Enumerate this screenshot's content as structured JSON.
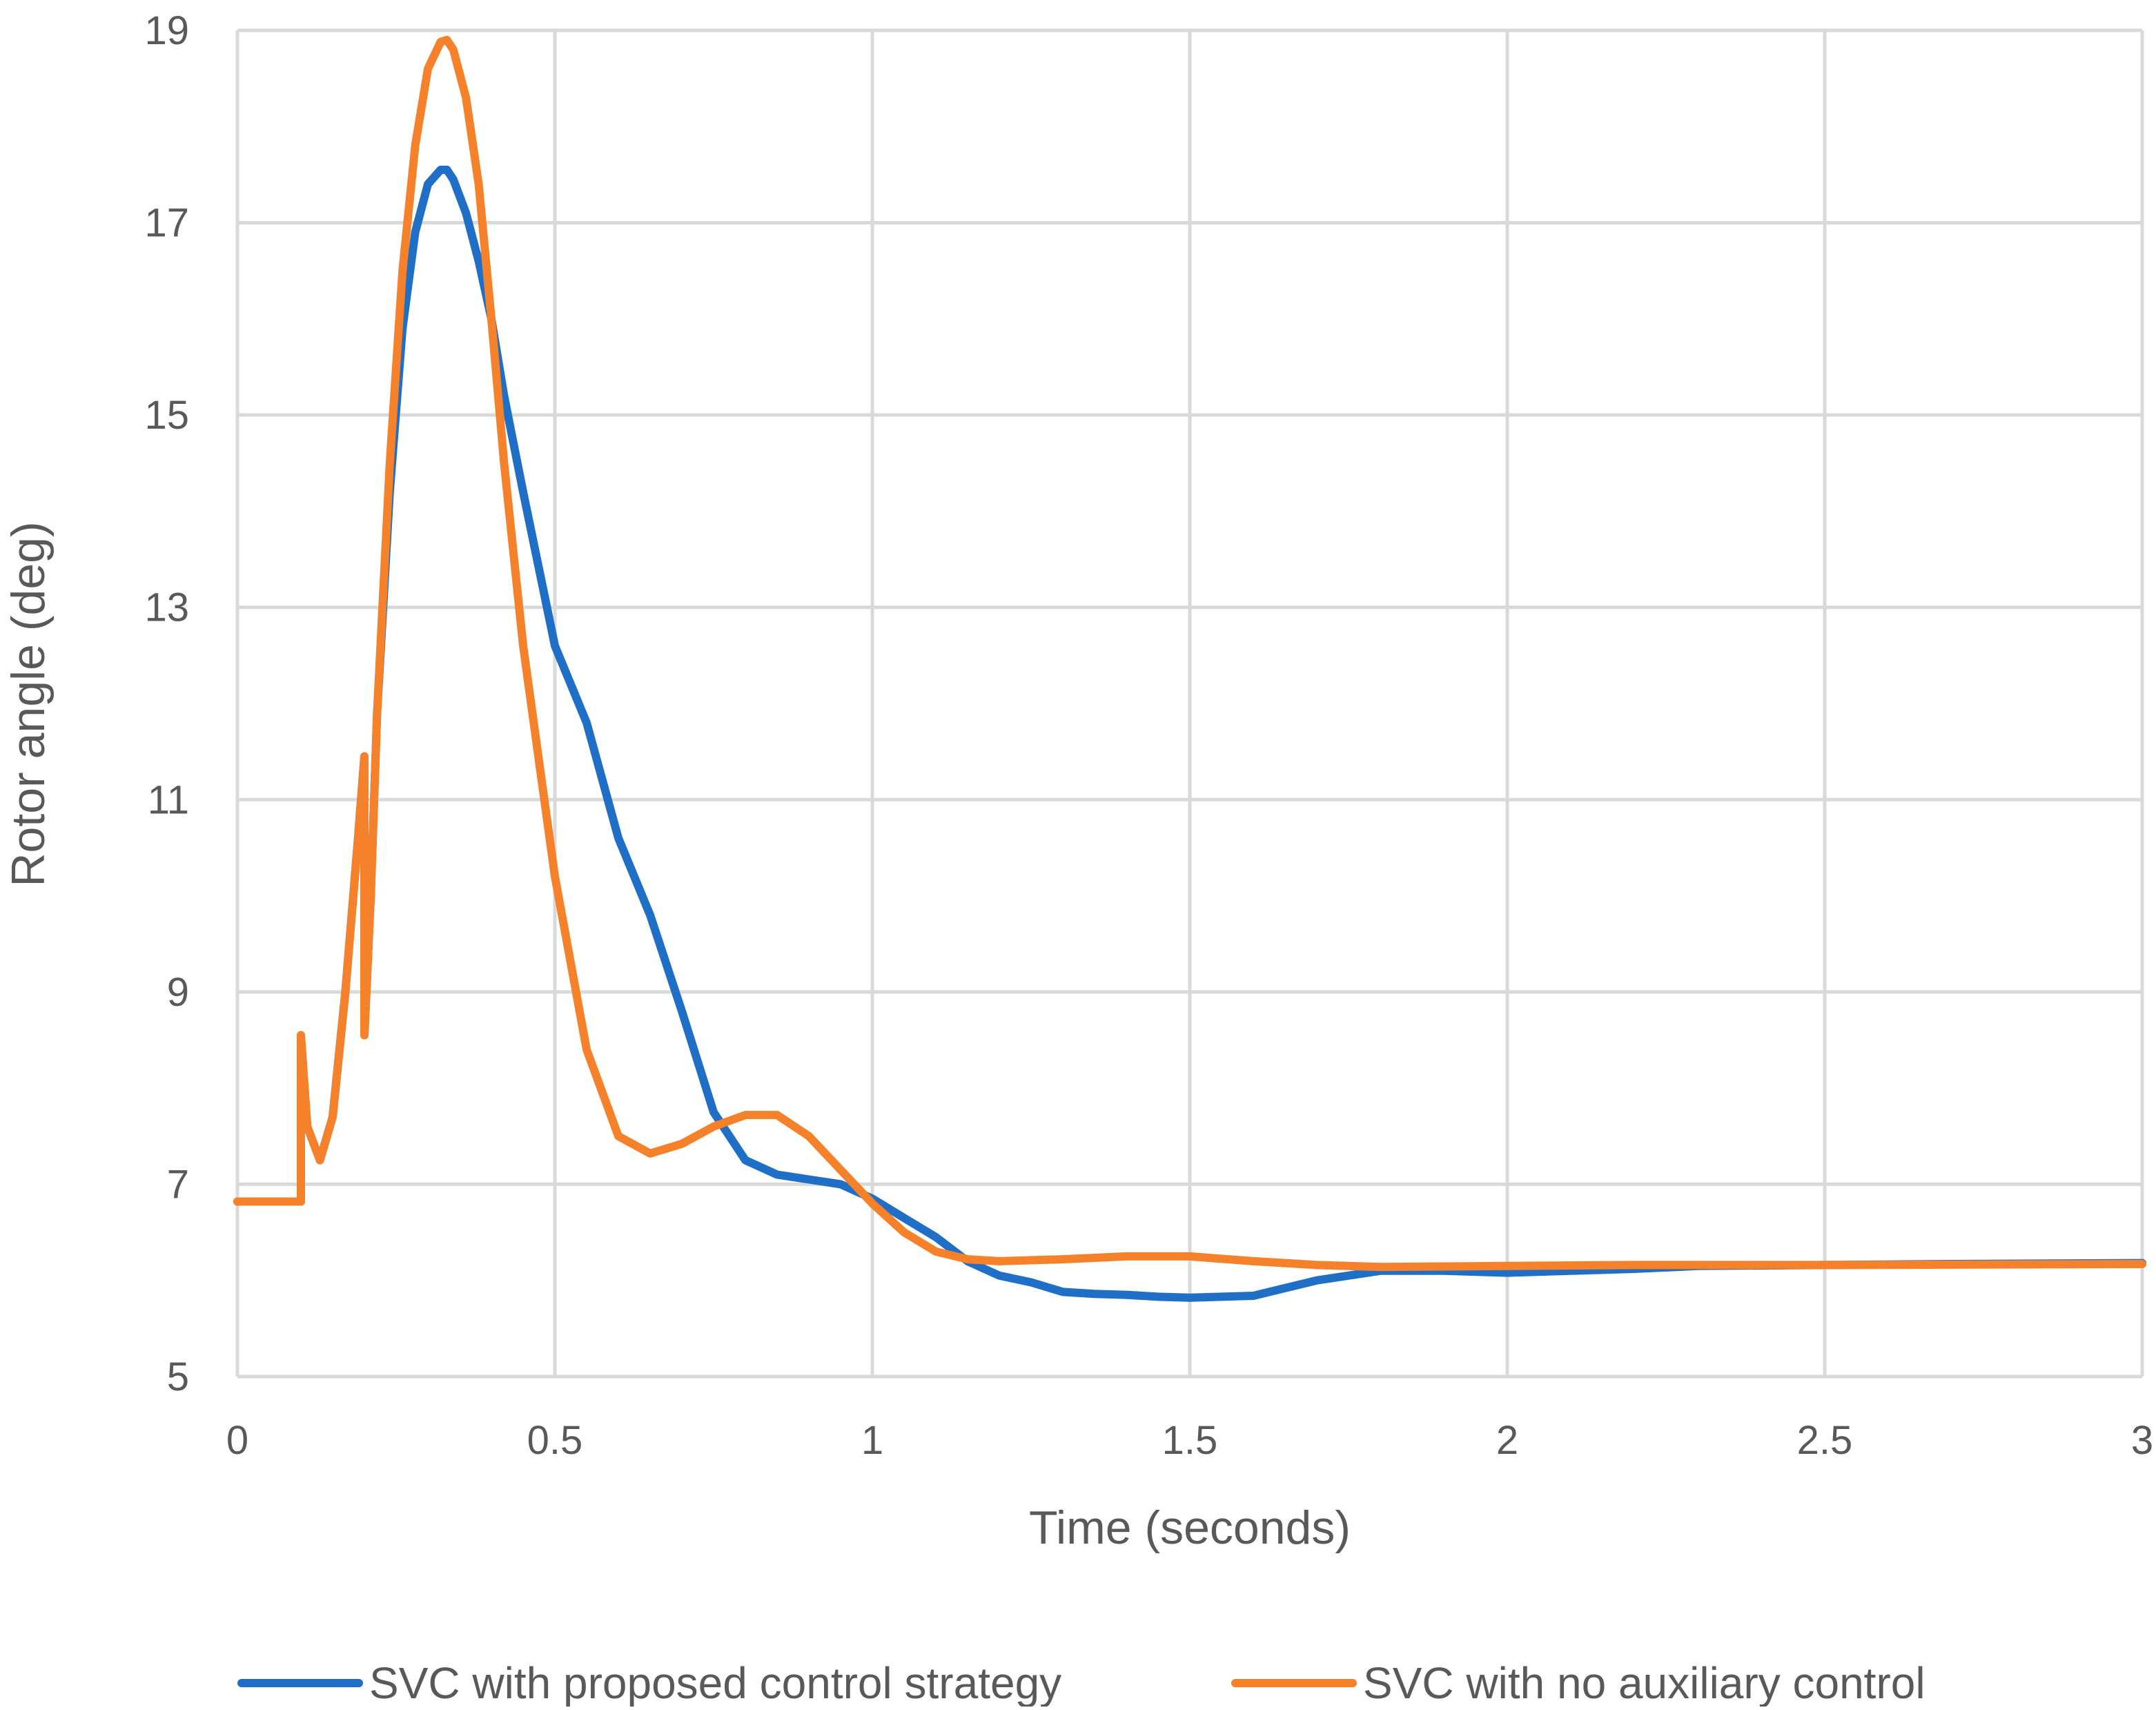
{
  "chart_data": {
    "type": "line",
    "xlabel": "Time (seconds)",
    "ylabel": "Rotor angle (deg)",
    "xlim": [
      0,
      3
    ],
    "ylim": [
      5,
      19
    ],
    "xticks": [
      0,
      0.5,
      1,
      1.5,
      2,
      2.5,
      3
    ],
    "xtick_labels": [
      "0",
      "0.5",
      "1",
      "1.5",
      "2",
      "2.5",
      "3"
    ],
    "yticks": [
      5,
      7,
      9,
      11,
      13,
      15,
      17,
      19
    ],
    "ytick_labels": [
      "5",
      "7",
      "9",
      "11",
      "13",
      "15",
      "17",
      "19"
    ],
    "grid": true,
    "legend_position": "bottom",
    "series": [
      {
        "name": "SVC with proposed control strategy",
        "color": "#1f6fc6",
        "x": [
          0,
          0.1,
          0.1,
          0.11,
          0.13,
          0.15,
          0.17,
          0.19,
          0.2,
          0.2,
          0.21,
          0.22,
          0.24,
          0.26,
          0.28,
          0.3,
          0.32,
          0.33,
          0.34,
          0.36,
          0.38,
          0.4,
          0.42,
          0.45,
          0.5,
          0.55,
          0.6,
          0.65,
          0.7,
          0.75,
          0.8,
          0.85,
          0.9,
          0.95,
          1,
          1.05,
          1.1,
          1.15,
          1.2,
          1.25,
          1.3,
          1.35,
          1.4,
          1.45,
          1.5,
          1.55,
          1.6,
          1.7,
          1.8,
          1.9,
          2,
          2.1,
          2.2,
          2.3,
          2.5,
          2.7,
          3
        ],
        "y": [
          6.82,
          6.82,
          8.55,
          7.6,
          7.25,
          7.7,
          9.0,
          10.6,
          11.45,
          8.55,
          10.0,
          11.9,
          14.2,
          15.9,
          16.9,
          17.4,
          17.55,
          17.55,
          17.45,
          17.1,
          16.6,
          16.0,
          15.2,
          14.2,
          12.6,
          11.8,
          10.6,
          9.8,
          8.8,
          7.75,
          7.25,
          7.1,
          7.05,
          7.0,
          6.85,
          6.65,
          6.45,
          6.2,
          6.05,
          5.98,
          5.88,
          5.86,
          5.85,
          5.83,
          5.82,
          5.83,
          5.84,
          6.0,
          6.1,
          6.1,
          6.08,
          6.1,
          6.12,
          6.15,
          6.16,
          6.17,
          6.18
        ]
      },
      {
        "name": "SVC with no auxiliary control",
        "color": "#f5822a",
        "x": [
          0,
          0.1,
          0.1,
          0.11,
          0.13,
          0.15,
          0.17,
          0.19,
          0.2,
          0.2,
          0.21,
          0.22,
          0.24,
          0.26,
          0.28,
          0.3,
          0.32,
          0.33,
          0.34,
          0.36,
          0.38,
          0.4,
          0.42,
          0.45,
          0.5,
          0.55,
          0.6,
          0.65,
          0.7,
          0.75,
          0.8,
          0.85,
          0.9,
          0.95,
          1,
          1.05,
          1.1,
          1.15,
          1.2,
          1.3,
          1.4,
          1.5,
          1.6,
          1.7,
          1.8,
          2,
          2.2,
          2.5,
          3
        ],
        "y": [
          6.82,
          6.82,
          8.55,
          7.6,
          7.25,
          7.7,
          9.0,
          10.6,
          11.45,
          8.55,
          10.0,
          11.9,
          14.5,
          16.5,
          17.8,
          18.6,
          18.88,
          18.9,
          18.8,
          18.3,
          17.4,
          16.0,
          14.5,
          12.6,
          10.2,
          8.4,
          7.5,
          7.32,
          7.42,
          7.6,
          7.72,
          7.72,
          7.5,
          7.15,
          6.8,
          6.5,
          6.3,
          6.22,
          6.2,
          6.22,
          6.25,
          6.25,
          6.2,
          6.16,
          6.14,
          6.15,
          6.16,
          6.16,
          6.17
        ]
      }
    ]
  }
}
